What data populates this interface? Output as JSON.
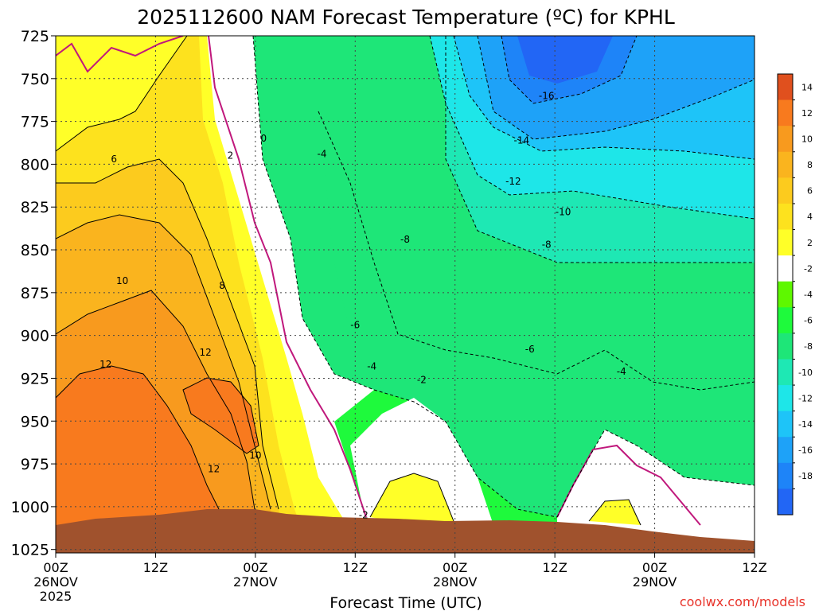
{
  "chart_data": {
    "type": "heatmap",
    "title": "2025112600 NAM Forecast Temperature (ºC) for KPHL",
    "xlabel": "Forecast Time (UTC)",
    "ylabel": "",
    "credit": "coolwx.com/models",
    "x_range_hours": [
      0,
      84
    ],
    "ylim": [
      1027,
      725
    ],
    "y_ticks": [
      "725",
      "750",
      "775",
      "800",
      "825",
      "850",
      "875",
      "900",
      "925",
      "950",
      "975",
      "1000",
      "1025"
    ],
    "y_tick_values": [
      725,
      750,
      775,
      800,
      825,
      850,
      875,
      900,
      925,
      950,
      975,
      1000,
      1025
    ],
    "x_ticks": [
      {
        "hour": 0,
        "time": "00Z",
        "date": "26NOV",
        "year": "2025"
      },
      {
        "hour": 12,
        "time": "12Z",
        "date": "",
        "year": ""
      },
      {
        "hour": 24,
        "time": "00Z",
        "date": "27NOV",
        "year": ""
      },
      {
        "hour": 36,
        "time": "12Z",
        "date": "",
        "year": ""
      },
      {
        "hour": 48,
        "time": "00Z",
        "date": "28NOV",
        "year": ""
      },
      {
        "hour": 60,
        "time": "12Z",
        "date": "",
        "year": ""
      },
      {
        "hour": 72,
        "time": "00Z",
        "date": "29NOV",
        "year": ""
      },
      {
        "hour": 84,
        "time": "12Z",
        "date": "",
        "year": ""
      }
    ],
    "colorbar": {
      "labels": [
        "14",
        "12",
        "10",
        "8",
        "6",
        "4",
        "2",
        "-2",
        "-4",
        "-6",
        "-8",
        "-10",
        "-12",
        "-14",
        "-16",
        "-18"
      ],
      "colors": [
        "#e0501e",
        "#f87a1e",
        "#f89a1e",
        "#fab41e",
        "#fccb1e",
        "#fde21e",
        "#ffff28",
        "#ffffff",
        "#5ef800",
        "#1efa3c",
        "#1ee678",
        "#1ee8b4",
        "#1ee6e8",
        "#1ec4f8",
        "#1ea2f8",
        "#1e84f8",
        "#2266f5"
      ]
    },
    "contour_labels": [
      {
        "text": "0",
        "hour": 25,
        "p": 785
      },
      {
        "text": "2",
        "hour": 21,
        "p": 795
      },
      {
        "text": "-4",
        "hour": 32,
        "p": 794
      },
      {
        "text": "-16",
        "hour": 59,
        "p": 760
      },
      {
        "text": "-14",
        "hour": 56,
        "p": 786
      },
      {
        "text": "-12",
        "hour": 55,
        "p": 810
      },
      {
        "text": "-10",
        "hour": 61,
        "p": 828
      },
      {
        "text": "-8",
        "hour": 42,
        "p": 844
      },
      {
        "text": "-8",
        "hour": 59,
        "p": 847
      },
      {
        "text": "-6",
        "hour": 36,
        "p": 894
      },
      {
        "text": "-6",
        "hour": 57,
        "p": 908
      },
      {
        "text": "-4",
        "hour": 38,
        "p": 918
      },
      {
        "text": "-4",
        "hour": 68,
        "p": 921
      },
      {
        "text": "-2",
        "hour": 44,
        "p": 926
      },
      {
        "text": "-2",
        "hour": 37,
        "p": 1005
      },
      {
        "text": "6",
        "hour": 7,
        "p": 797
      },
      {
        "text": "8",
        "hour": 20,
        "p": 871
      },
      {
        "text": "10",
        "hour": 8,
        "p": 868
      },
      {
        "text": "12",
        "hour": 6,
        "p": 917
      },
      {
        "text": "12",
        "hour": 18,
        "p": 910
      },
      {
        "text": "12",
        "hour": 19,
        "p": 978
      },
      {
        "text": "10",
        "hour": 24,
        "p": 970
      }
    ],
    "colors": {
      "terrain": "#a0522d",
      "grid": "#444444",
      "credit": "#e8332a",
      "freezing_line": "#c0187c"
    }
  }
}
